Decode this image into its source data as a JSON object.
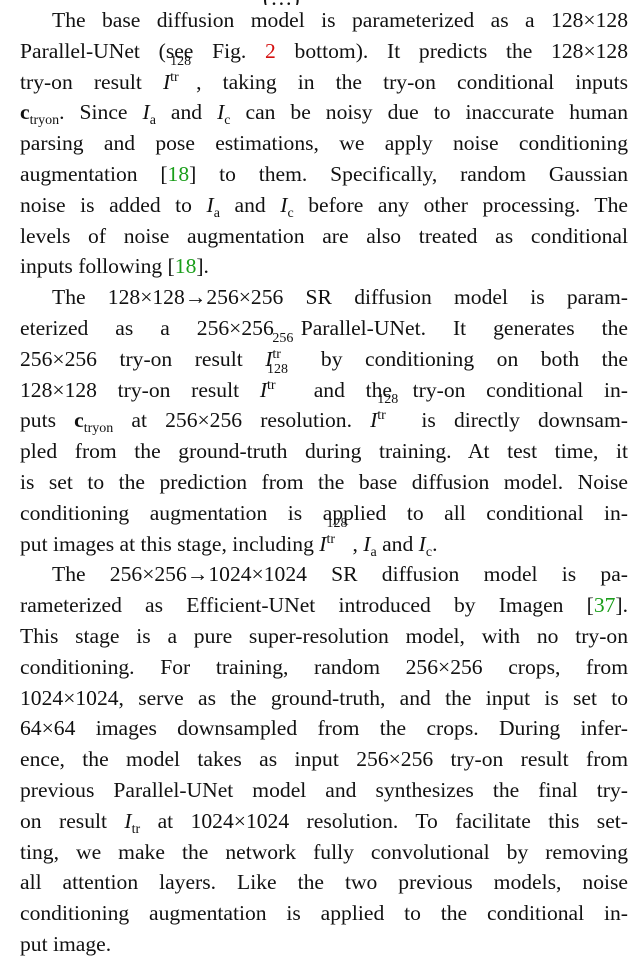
{
  "paragraphs": [
    {
      "lines": [
        [
          "The base diffusion model is parameterized as a 128×128"
        ],
        [
          "Parallel-UNet (see Fig. ",
          "2",
          " bottom). It predicts the 128×128"
        ],
        [
          "try-on result ",
          "I",
          "128",
          "tr",
          ", taking in the try-on conditional inputs"
        ],
        [
          "c",
          "tryon",
          ". Since ",
          "I",
          "a",
          " and ",
          "I",
          "c",
          " can be noisy due to inaccurate human"
        ],
        [
          "parsing and pose estimations, we apply noise conditioning"
        ],
        [
          "augmentation [",
          "18",
          "] to them. Specifically, random Gaussian"
        ],
        [
          "noise is added to ",
          "I",
          "a",
          " and ",
          "I",
          "c",
          " before any other processing. The"
        ],
        [
          "levels of noise augmentation are also treated as conditional"
        ],
        [
          "inputs following [",
          "18",
          "]."
        ]
      ]
    },
    {
      "lines": [
        [
          "The 128×128→256×256 SR diffusion model is param-"
        ],
        [
          "eterized as a 256×256 Parallel-UNet. It generates the"
        ],
        [
          "256×256 try-on result ",
          "I",
          "256",
          "tr",
          " by conditioning on both the"
        ],
        [
          "128×128 try-on result ",
          "I",
          "128",
          "tr",
          " and the try-on conditional in-"
        ],
        [
          "puts ",
          "c",
          "tryon",
          " at 256×256 resolution. ",
          "I",
          "128",
          "tr",
          " is directly downsam-"
        ],
        [
          "pled from the ground-truth during training. At test time, it"
        ],
        [
          "is set to the prediction from the base diffusion model. Noise"
        ],
        [
          "conditioning augmentation is applied to all conditional in-"
        ],
        [
          "put images at this stage, including ",
          "I",
          "128",
          "tr",
          ", ",
          "I",
          "a",
          " and ",
          "I",
          "c",
          "."
        ]
      ]
    },
    {
      "lines": [
        [
          "The 256×256→1024×1024 SR diffusion model is pa-"
        ],
        [
          "rameterized as Efficient-UNet introduced by Imagen [",
          "37",
          "]."
        ],
        [
          "This stage is a pure super-resolution model, with no try-on"
        ],
        [
          "conditioning. For training, random 256×256 crops, from"
        ],
        [
          "1024×1024, serve as the ground-truth, and the input is set to"
        ],
        [
          "64×64 images downsampled from the crops. During infer-"
        ],
        [
          "ence, the model takes as input 256×256 try-on result from"
        ],
        [
          "previous Parallel-UNet model and synthesizes the final try-"
        ],
        [
          "on result ",
          "I",
          "tr",
          " at 1024×1024 resolution. To facilitate this set-"
        ],
        [
          "ting, we make the network fully convolutional by removing"
        ],
        [
          "all attention layers. Like the two previous models, noise"
        ],
        [
          "conditioning augmentation is applied to the conditional in-"
        ],
        [
          "put image."
        ]
      ]
    }
  ]
}
